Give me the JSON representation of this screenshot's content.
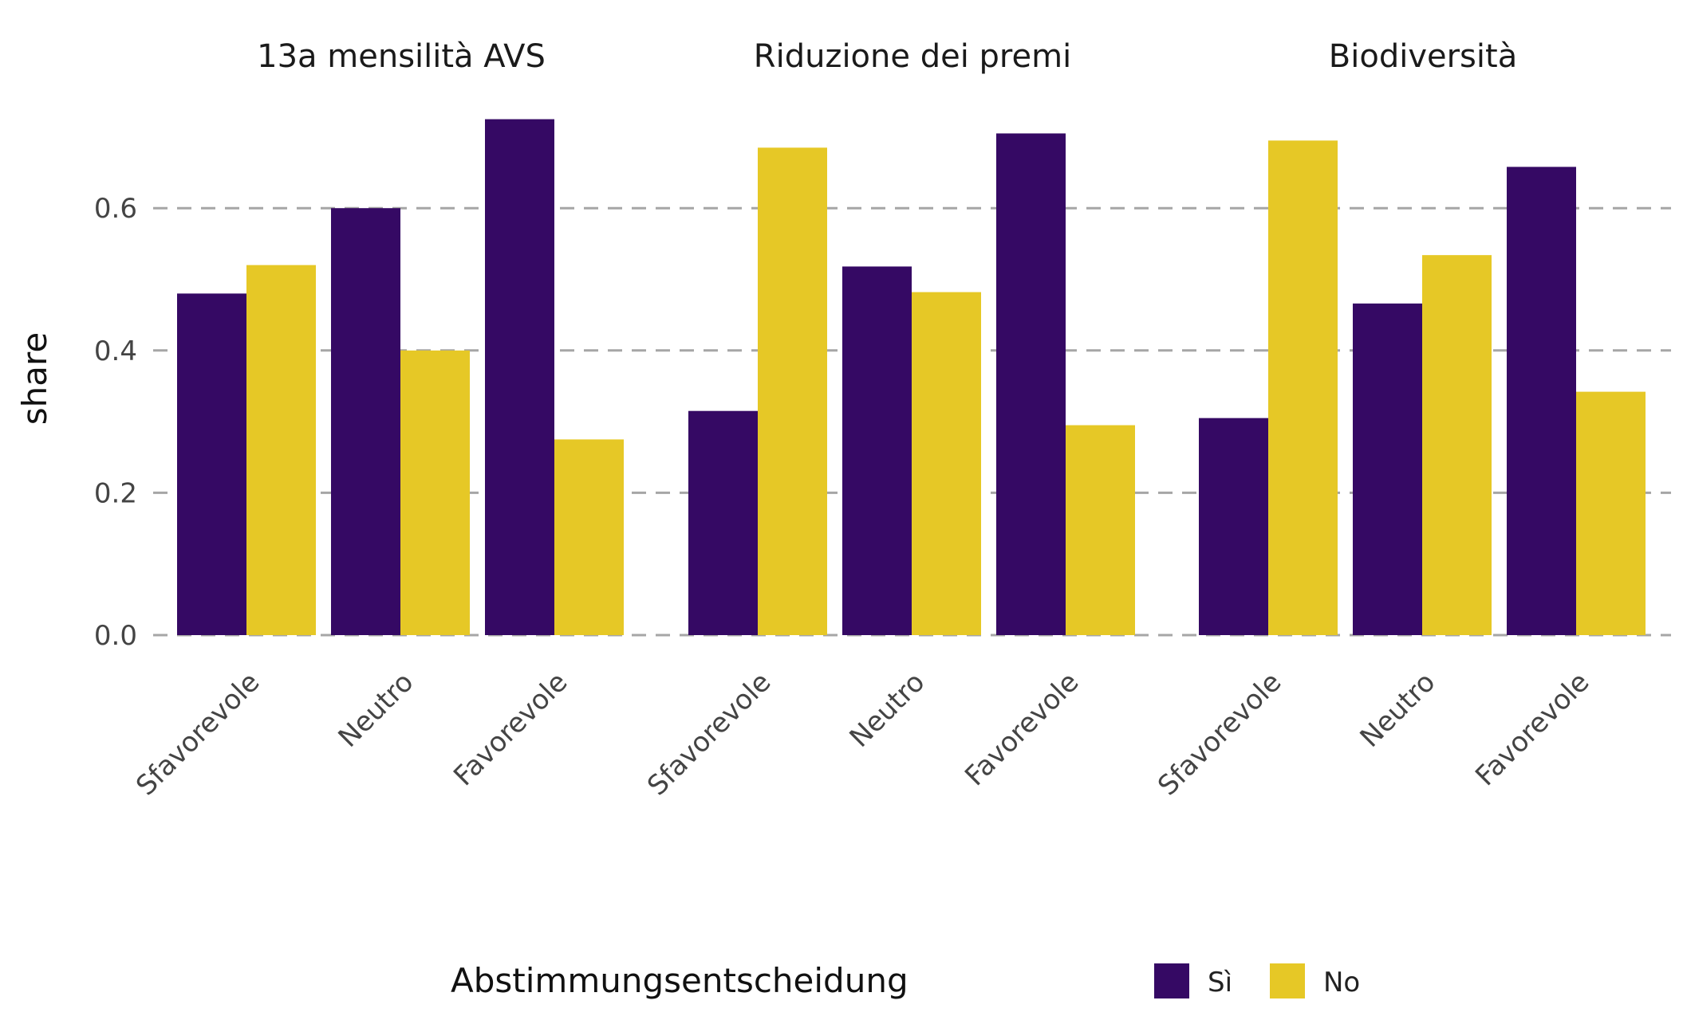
{
  "chart_data": {
    "type": "bar",
    "ylabel": "share",
    "ylim": [
      0,
      0.75
    ],
    "yticks": [
      0.0,
      0.2,
      0.4,
      0.6
    ],
    "ytick_labels": [
      "0.0",
      "0.2",
      "0.4",
      "0.6"
    ],
    "grid": "horizontal dashed",
    "legend_position": "bottom",
    "legend_title": "Abstimmungsentscheidung",
    "legend": [
      {
        "name": "Sì",
        "color": "#350964"
      },
      {
        "name": "No",
        "color": "#E6C826"
      }
    ],
    "categories": [
      "Sfavorevole",
      "Neutro",
      "Favorevole"
    ],
    "facets": [
      {
        "title": "13a mensilità AVS",
        "series": [
          {
            "name": "Sì",
            "values": [
              0.48,
              0.6,
              0.725
            ]
          },
          {
            "name": "No",
            "values": [
              0.52,
              0.4,
              0.275
            ]
          }
        ]
      },
      {
        "title": "Riduzione dei premi",
        "series": [
          {
            "name": "Sì",
            "values": [
              0.315,
              0.518,
              0.705
            ]
          },
          {
            "name": "No",
            "values": [
              0.685,
              0.482,
              0.295
            ]
          }
        ]
      },
      {
        "title": "Biodiversità",
        "series": [
          {
            "name": "Sì",
            "values": [
              0.305,
              0.466,
              0.658
            ]
          },
          {
            "name": "No",
            "values": [
              0.695,
              0.534,
              0.342
            ]
          }
        ]
      }
    ]
  }
}
